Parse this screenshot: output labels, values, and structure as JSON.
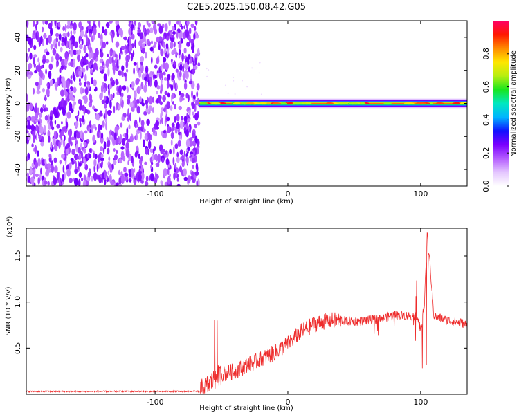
{
  "title": "C2E5.2025.150.08.42.G05",
  "chart_data": [
    {
      "type": "heatmap",
      "xlabel": "Height of straight line (km)",
      "ylabel": "Frequency (Hz)",
      "xlim": [
        -197,
        135
      ],
      "ylim": [
        -50,
        50
      ],
      "x_ticks": [
        -100,
        0,
        100
      ],
      "y_ticks": [
        -40,
        -20,
        0,
        20,
        40
      ],
      "colorbar": {
        "label": "Normalized spectral amplitude",
        "range": [
          0,
          1
        ],
        "ticks": [
          "0.0",
          "0.2",
          "0.4",
          "0.6",
          "0.8"
        ],
        "colors": [
          "#ffffff",
          "#e4c6ff",
          "#b45cff",
          "#7a00ff",
          "#1010ff",
          "#00b4ff",
          "#00e8c0",
          "#19e61e",
          "#b8ee10",
          "#ffe600",
          "#ff8a00",
          "#ff1800",
          "#ff0066"
        ]
      },
      "regions": [
        {
          "x_from": -197,
          "x_to": -67,
          "description_level": "broadband noise",
          "amplitude": 0.12
        },
        {
          "x_from": -67,
          "x_to": 135,
          "center_frequency": 0,
          "amplitude_peak": 0.85
        }
      ]
    },
    {
      "type": "line",
      "xlabel": "Height of straight line (km)",
      "ylabel": "SNR (10 * v/v)",
      "y_scale_note": "(x10⁴)",
      "xlim": [
        -197,
        135
      ],
      "ylim": [
        0,
        1.8
      ],
      "x_ticks": [
        -100,
        0,
        100
      ],
      "y_ticks": [
        "0.5",
        "1.0",
        "1.5"
      ],
      "series_color": "#ee2c2c",
      "series": [
        {
          "x": [
            -197,
            -150,
            -100,
            -67,
            -60,
            -54,
            -50,
            -40,
            -30,
            -20,
            -10,
            0,
            10,
            20,
            30,
            40,
            50,
            60,
            70,
            80,
            90,
            97,
            100,
            103,
            105,
            110,
            120,
            130,
            135
          ],
          "values": [
            0.03,
            0.03,
            0.03,
            0.03,
            0.1,
            0.18,
            0.22,
            0.25,
            0.32,
            0.38,
            0.45,
            0.55,
            0.68,
            0.76,
            0.8,
            0.8,
            0.79,
            0.8,
            0.82,
            0.86,
            0.85,
            0.85,
            0.7,
            1.0,
            1.78,
            0.85,
            0.8,
            0.78,
            0.75
          ]
        }
      ]
    }
  ]
}
